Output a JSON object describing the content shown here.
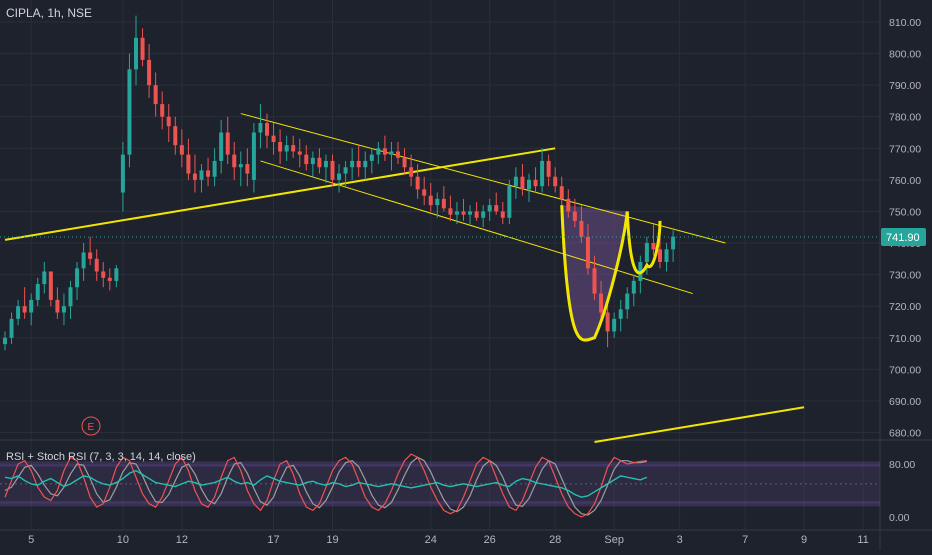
{
  "header": {
    "symbol_label": "CIPLA, 1h, NSE"
  },
  "indicator": {
    "label": "RSI + Stoch RSI (7, 3, 3, 14, 14, close)"
  },
  "colors": {
    "background": "#1e222d",
    "grid": "#2a2e39",
    "up": "#26a69a",
    "down": "#ef5350",
    "trendline": "#f2e600",
    "price_tag": "#26a69a",
    "pattern_fill": "#6b4f86",
    "rsi_line": "#22c1b2",
    "stoch_k": "#ef5350",
    "stoch_d": "#9e9e9e",
    "band_fill": "#4a3b6b",
    "text": "#b2b5be"
  },
  "event_marker": {
    "label": "E"
  },
  "chart_data": {
    "type": "candlestick",
    "title": "",
    "price_axis": {
      "ticks": [
        "810.00",
        "800.00",
        "790.00",
        "780.00",
        "770.00",
        "760.00",
        "750.00",
        "740.00",
        "730.00",
        "720.00",
        "710.00",
        "700.00",
        "690.00",
        "680.00"
      ],
      "range": [
        677,
        813
      ],
      "last_price": "741.90",
      "last_value": 741.9
    },
    "time_axis": {
      "ticks": [
        {
          "label": "5",
          "index": 4
        },
        {
          "label": "10",
          "index": 18
        },
        {
          "label": "12",
          "index": 27
        },
        {
          "label": "17",
          "index": 41
        },
        {
          "label": "19",
          "index": 50
        },
        {
          "label": "24",
          "index": 65
        },
        {
          "label": "26",
          "index": 74
        },
        {
          "label": "28",
          "index": 84
        },
        {
          "label": "Sep",
          "index": 93
        },
        {
          "label": "3",
          "index": 103
        },
        {
          "label": "7",
          "index": 113
        },
        {
          "label": "9",
          "index": 122
        },
        {
          "label": "11",
          "index": 131
        }
      ]
    },
    "candles": [
      [
        708,
        712,
        706,
        710
      ],
      [
        710,
        718,
        708,
        716
      ],
      [
        716,
        722,
        714,
        720
      ],
      [
        720,
        726,
        716,
        718
      ],
      [
        718,
        724,
        714,
        722
      ],
      [
        722,
        729,
        720,
        727
      ],
      [
        727,
        734,
        724,
        731
      ],
      [
        731,
        730,
        720,
        722
      ],
      [
        722,
        726,
        716,
        718
      ],
      [
        718,
        724,
        714,
        720
      ],
      [
        720,
        728,
        716,
        726
      ],
      [
        726,
        734,
        722,
        732
      ],
      [
        732,
        740,
        728,
        737
      ],
      [
        737,
        742,
        733,
        735
      ],
      [
        735,
        738,
        728,
        731
      ],
      [
        731,
        734,
        726,
        729
      ],
      [
        729,
        732,
        725,
        728
      ],
      [
        728,
        733,
        726,
        732
      ],
      [
        756,
        772,
        750,
        768
      ],
      [
        768,
        800,
        764,
        795
      ],
      [
        795,
        812,
        790,
        805
      ],
      [
        805,
        808,
        796,
        798
      ],
      [
        798,
        803,
        786,
        790
      ],
      [
        790,
        794,
        780,
        784
      ],
      [
        784,
        788,
        776,
        780
      ],
      [
        780,
        784,
        772,
        777
      ],
      [
        777,
        780,
        768,
        771
      ],
      [
        771,
        776,
        764,
        768
      ],
      [
        768,
        773,
        760,
        762
      ],
      [
        762,
        768,
        756,
        760
      ],
      [
        760,
        765,
        756,
        763
      ],
      [
        763,
        767,
        758,
        761
      ],
      [
        761,
        770,
        758,
        766
      ],
      [
        766,
        779,
        762,
        775
      ],
      [
        775,
        780,
        765,
        768
      ],
      [
        768,
        772,
        760,
        764
      ],
      [
        764,
        769,
        758,
        765
      ],
      [
        765,
        770,
        758,
        762
      ],
      [
        760,
        778,
        756,
        775
      ],
      [
        775,
        784,
        770,
        778
      ],
      [
        778,
        781,
        770,
        774
      ],
      [
        774,
        778,
        768,
        772
      ],
      [
        772,
        776,
        765,
        769
      ],
      [
        769,
        774,
        766,
        771
      ],
      [
        771,
        774,
        767,
        769
      ],
      [
        769,
        773,
        764,
        768
      ],
      [
        768,
        771,
        763,
        765
      ],
      [
        765,
        769,
        761,
        767
      ],
      [
        767,
        770,
        762,
        764
      ],
      [
        764,
        768,
        759,
        766
      ],
      [
        766,
        768,
        758,
        760
      ],
      [
        760,
        765,
        756,
        762
      ],
      [
        762,
        766,
        758,
        764
      ],
      [
        764,
        770,
        760,
        766
      ],
      [
        766,
        771,
        761,
        764
      ],
      [
        764,
        769,
        760,
        766
      ],
      [
        766,
        770,
        762,
        768
      ],
      [
        768,
        772,
        765,
        770
      ],
      [
        770,
        774,
        766,
        768
      ],
      [
        768,
        772,
        763,
        769
      ],
      [
        769,
        772,
        765,
        767
      ],
      [
        767,
        770,
        762,
        764
      ],
      [
        764,
        768,
        758,
        761
      ],
      [
        761,
        765,
        754,
        757
      ],
      [
        757,
        761,
        752,
        755
      ],
      [
        755,
        759,
        750,
        752
      ],
      [
        752,
        756,
        748,
        754
      ],
      [
        754,
        758,
        750,
        751
      ],
      [
        751,
        755,
        747,
        749
      ],
      [
        749,
        753,
        746,
        750
      ],
      [
        750,
        754,
        747,
        749
      ],
      [
        749,
        752,
        746,
        750
      ],
      [
        750,
        753,
        747,
        748
      ],
      [
        748,
        752,
        745,
        750
      ],
      [
        750,
        754,
        747,
        752
      ],
      [
        752,
        756,
        749,
        750
      ],
      [
        750,
        753,
        746,
        748
      ],
      [
        748,
        760,
        746,
        758
      ],
      [
        758,
        764,
        754,
        761
      ],
      [
        761,
        765,
        755,
        757
      ],
      [
        757,
        762,
        753,
        760
      ],
      [
        760,
        764,
        756,
        758
      ],
      [
        758,
        770,
        756,
        766
      ],
      [
        766,
        768,
        758,
        761
      ],
      [
        761,
        764,
        756,
        758
      ],
      [
        758,
        761,
        752,
        754
      ],
      [
        754,
        757,
        748,
        750
      ],
      [
        750,
        754,
        745,
        747
      ],
      [
        747,
        752,
        740,
        742
      ],
      [
        742,
        746,
        730,
        732
      ],
      [
        732,
        736,
        722,
        724
      ],
      [
        724,
        728,
        716,
        718
      ],
      [
        718,
        722,
        707,
        712
      ],
      [
        712,
        718,
        710,
        716
      ],
      [
        716,
        722,
        712,
        719
      ],
      [
        719,
        726,
        716,
        724
      ],
      [
        724,
        730,
        720,
        728
      ],
      [
        728,
        736,
        724,
        734
      ],
      [
        734,
        742,
        730,
        740
      ],
      [
        740,
        746,
        736,
        738
      ],
      [
        738,
        742,
        732,
        734
      ],
      [
        734,
        740,
        731,
        738
      ],
      [
        738,
        744,
        734,
        742
      ]
    ],
    "trendlines": [
      {
        "name": "long support",
        "from": [
          0,
          741
        ],
        "to": [
          84,
          770
        ]
      },
      {
        "name": "channel upper",
        "from": [
          36,
          781
        ],
        "to": [
          110,
          740
        ]
      },
      {
        "name": "channel lower",
        "from": [
          39,
          766
        ],
        "to": [
          105,
          724
        ]
      },
      {
        "name": "lower support",
        "from": [
          90,
          677
        ],
        "to": [
          122,
          688
        ]
      }
    ],
    "pattern": {
      "name": "cup and handle",
      "cup_left": [
        85,
        752
      ],
      "cup_bottom": [
        88,
        709
      ],
      "cup_right": [
        95,
        750
      ],
      "handle_bottom": [
        97,
        731
      ],
      "handle_right": [
        100,
        747
      ]
    },
    "rsi_panel": {
      "ticks": [
        "80.00",
        "0.00"
      ],
      "range": [
        -10,
        100
      ],
      "band": [
        20,
        80
      ],
      "mid": 50,
      "rsi": [
        60,
        58,
        62,
        55,
        50,
        48,
        54,
        58,
        52,
        46,
        50,
        56,
        62,
        60,
        54,
        50,
        48,
        52,
        58,
        66,
        70,
        64,
        58,
        52,
        50,
        48,
        46,
        50,
        54,
        52,
        48,
        50,
        52,
        56,
        60,
        54,
        50,
        52,
        48,
        56,
        62,
        58,
        54,
        52,
        50,
        48,
        52,
        54,
        50,
        48,
        52,
        50,
        46,
        48,
        52,
        50,
        48,
        46,
        48,
        50,
        48,
        46,
        44,
        46,
        48,
        50,
        52,
        48,
        46,
        48,
        50,
        48,
        46,
        48,
        50,
        52,
        48,
        46,
        54,
        58,
        56,
        52,
        50,
        48,
        46,
        44,
        40,
        34,
        30,
        32,
        38,
        44,
        50,
        56,
        62,
        60,
        58,
        56,
        60
      ],
      "stoch_k": [
        30,
        55,
        80,
        85,
        70,
        45,
        30,
        25,
        40,
        70,
        90,
        85,
        60,
        30,
        15,
        20,
        45,
        75,
        90,
        85,
        60,
        35,
        20,
        15,
        30,
        55,
        80,
        90,
        70,
        40,
        20,
        15,
        30,
        60,
        85,
        90,
        70,
        40,
        20,
        10,
        25,
        55,
        80,
        85,
        65,
        35,
        15,
        10,
        20,
        45,
        70,
        85,
        90,
        80,
        55,
        30,
        15,
        10,
        20,
        40,
        65,
        85,
        95,
        90,
        70,
        45,
        25,
        10,
        5,
        10,
        30,
        55,
        80,
        90,
        85,
        60,
        35,
        15,
        10,
        25,
        50,
        75,
        90,
        85,
        60,
        35,
        15,
        5,
        0,
        5,
        20,
        45,
        75,
        90,
        85,
        80,
        82,
        84,
        85
      ],
      "stoch_d": [
        40,
        45,
        60,
        75,
        78,
        65,
        48,
        35,
        32,
        45,
        65,
        80,
        78,
        58,
        35,
        22,
        26,
        45,
        68,
        82,
        80,
        62,
        40,
        23,
        22,
        34,
        55,
        75,
        80,
        65,
        42,
        25,
        20,
        35,
        60,
        80,
        82,
        66,
        43,
        23,
        18,
        30,
        55,
        75,
        78,
        62,
        38,
        20,
        14,
        25,
        45,
        68,
        82,
        85,
        76,
        56,
        33,
        18,
        14,
        22,
        41,
        63,
        82,
        90,
        85,
        68,
        46,
        26,
        12,
        8,
        15,
        32,
        56,
        77,
        85,
        78,
        60,
        36,
        18,
        16,
        28,
        50,
        72,
        85,
        80,
        58,
        35,
        15,
        5,
        3,
        10,
        25,
        48,
        72,
        85,
        85,
        82,
        82,
        84
      ]
    }
  }
}
